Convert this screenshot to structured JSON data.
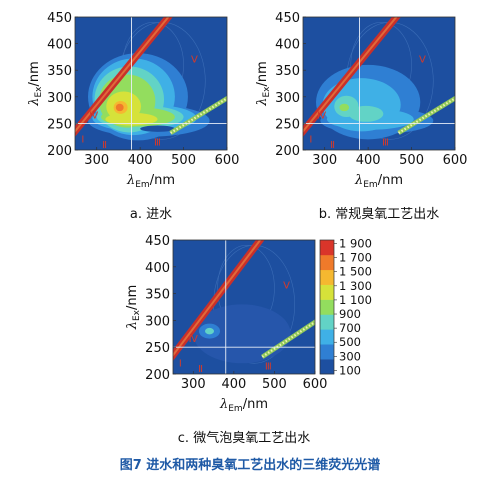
{
  "figure": {
    "caption": "图7    进水和两种臭氧工艺出水的三维荧光光谱",
    "caption_color": "#1f5aa6"
  },
  "chart_data": [
    {
      "type": "heatmap",
      "panel_label": "a. 进水",
      "xlabel_sym": "λ",
      "xlabel_sub": "Em",
      "xlabel_unit": "/nm",
      "ylabel_sym": "λ",
      "ylabel_sub": "Ex",
      "ylabel_unit": "/nm",
      "xlim": [
        250,
        600
      ],
      "ylim": [
        200,
        450
      ],
      "xticks": [
        300,
        400,
        500,
        600
      ],
      "yticks": [
        200,
        250,
        300,
        350,
        400,
        450
      ],
      "divider_lines": {
        "x": 380,
        "y": 250
      },
      "region_labels": [
        {
          "text": "Ⅰ",
          "x": 268,
          "y": 220
        },
        {
          "text": "Ⅱ",
          "x": 318,
          "y": 209
        },
        {
          "text": "Ⅲ",
          "x": 440,
          "y": 214
        },
        {
          "text": "Ⅳ",
          "x": 293,
          "y": 265
        },
        {
          "text": "Ⅴ",
          "x": 525,
          "y": 370
        }
      ],
      "peaks": [
        {
          "em": 355,
          "ex": 280,
          "intensity": 1900
        },
        {
          "em": 440,
          "ex": 335,
          "intensity": 600
        },
        {
          "em": 410,
          "ex": 250,
          "intensity": 700
        }
      ],
      "scatter_band_intensity": 1700
    },
    {
      "type": "heatmap",
      "panel_label": "b. 常规臭氧工艺出水",
      "xlabel_sym": "λ",
      "xlabel_sub": "Em",
      "xlabel_unit": "/nm",
      "ylabel_sym": "λ",
      "ylabel_sub": "Ex",
      "ylabel_unit": "/nm",
      "xlim": [
        250,
        600
      ],
      "ylim": [
        200,
        450
      ],
      "xticks": [
        300,
        400,
        500,
        600
      ],
      "yticks": [
        200,
        250,
        300,
        350,
        400,
        450
      ],
      "divider_lines": {
        "x": 380,
        "y": 250
      },
      "region_labels": [
        {
          "text": "Ⅰ",
          "x": 268,
          "y": 220
        },
        {
          "text": "Ⅱ",
          "x": 318,
          "y": 209
        },
        {
          "text": "Ⅲ",
          "x": 440,
          "y": 214
        },
        {
          "text": "Ⅳ",
          "x": 293,
          "y": 265
        },
        {
          "text": "Ⅴ",
          "x": 525,
          "y": 370
        }
      ],
      "peaks": [
        {
          "em": 345,
          "ex": 280,
          "intensity": 500
        },
        {
          "em": 400,
          "ex": 285,
          "intensity": 400
        }
      ],
      "scatter_band_intensity": 1700
    },
    {
      "type": "heatmap",
      "panel_label": "c. 微气泡臭氧工艺出水",
      "xlabel_sym": "λ",
      "xlabel_sub": "Em",
      "xlabel_unit": "/nm",
      "ylabel_sym": "λ",
      "ylabel_sub": "Ex",
      "ylabel_unit": "/nm",
      "xlim": [
        250,
        600
      ],
      "ylim": [
        200,
        450
      ],
      "xticks": [
        300,
        400,
        500,
        600
      ],
      "yticks": [
        200,
        250,
        300,
        350,
        400,
        450
      ],
      "divider_lines": {
        "x": 380,
        "y": 250
      },
      "region_labels": [
        {
          "text": "Ⅰ",
          "x": 268,
          "y": 220
        },
        {
          "text": "Ⅱ",
          "x": 318,
          "y": 209
        },
        {
          "text": "Ⅲ",
          "x": 485,
          "y": 214
        },
        {
          "text": "Ⅳ",
          "x": 300,
          "y": 265
        },
        {
          "text": "Ⅴ",
          "x": 530,
          "y": 365
        }
      ],
      "peaks": [
        {
          "em": 340,
          "ex": 280,
          "intensity": 400
        }
      ],
      "scatter_band_intensity": 1700,
      "colorbar": {
        "ticks": [
          "1 900",
          "1 700",
          "1 500",
          "1 300",
          "1 100",
          "900",
          "700",
          "500",
          "300",
          "100"
        ],
        "range": [
          100,
          1900
        ],
        "colors": [
          "#1d4fa0",
          "#2f7fd3",
          "#3fb0e6",
          "#62d3c6",
          "#93dd5e",
          "#d6e23a",
          "#f5b830",
          "#ef7a2a",
          "#d9352a"
        ]
      }
    }
  ]
}
